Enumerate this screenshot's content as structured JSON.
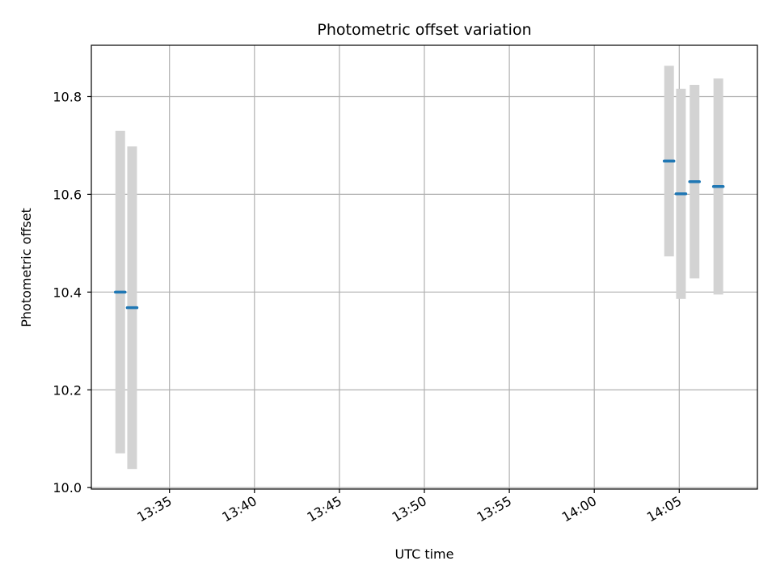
{
  "chart_data": {
    "type": "scatter",
    "title": "Photometric offset variation",
    "xlabel": "UTC time",
    "ylabel": "Photometric offset",
    "x_tick_labels": [
      "13:35",
      "13:40",
      "13:45",
      "13:50",
      "13:55",
      "14:00",
      "14:05"
    ],
    "x_ticks_minutes": [
      815,
      820,
      825,
      830,
      835,
      840,
      845
    ],
    "y_tick_labels": [
      "10.0",
      "10.2",
      "10.4",
      "10.6",
      "10.8"
    ],
    "y_ticks": [
      10.0,
      10.2,
      10.4,
      10.6,
      10.8
    ],
    "xlim_minutes": [
      810.4,
      849.6
    ],
    "ylim": [
      9.997,
      10.905
    ],
    "grid": true,
    "colors": {
      "point": "#1f77b4",
      "errorbar": "#d3d3d3",
      "grid": "#b0b0b0"
    },
    "points": [
      {
        "x_minutes": 812.1,
        "y": 10.4,
        "err": 0.33
      },
      {
        "x_minutes": 812.8,
        "y": 10.368,
        "err": 0.33
      },
      {
        "x_minutes": 844.4,
        "y": 10.668,
        "err": 0.195
      },
      {
        "x_minutes": 845.1,
        "y": 10.601,
        "err": 0.215
      },
      {
        "x_minutes": 845.9,
        "y": 10.626,
        "err": 0.198
      },
      {
        "x_minutes": 847.3,
        "y": 10.616,
        "err": 0.221
      }
    ]
  }
}
